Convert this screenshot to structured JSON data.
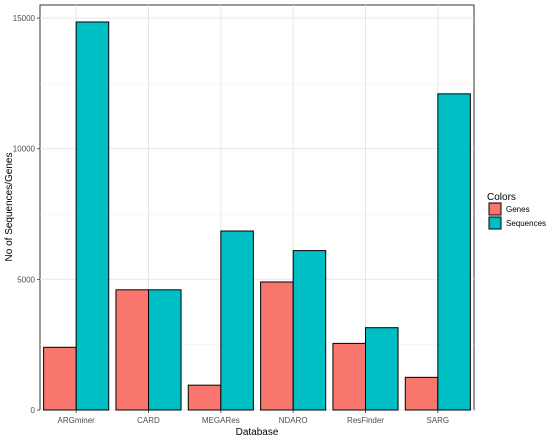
{
  "chart_data": {
    "type": "bar",
    "categories": [
      "ARGminer",
      "CARD",
      "MEGARes",
      "NDARO",
      "ResFinder",
      "SARG"
    ],
    "series": [
      {
        "name": "Genes",
        "color": "#F8766D",
        "values": [
          2400,
          4600,
          950,
          4900,
          2550,
          1250
        ]
      },
      {
        "name": "Sequences",
        "color": "#00BFC4",
        "values": [
          14850,
          4600,
          6850,
          6100,
          3150,
          12100
        ]
      }
    ],
    "xlabel": "Database",
    "ylabel": "No of Sequences/Genes",
    "ylim": [
      0,
      15500
    ],
    "yticks": [
      0,
      5000,
      10000,
      15000
    ],
    "legend_title": "Colors",
    "legend_position": "right",
    "grid": true
  }
}
